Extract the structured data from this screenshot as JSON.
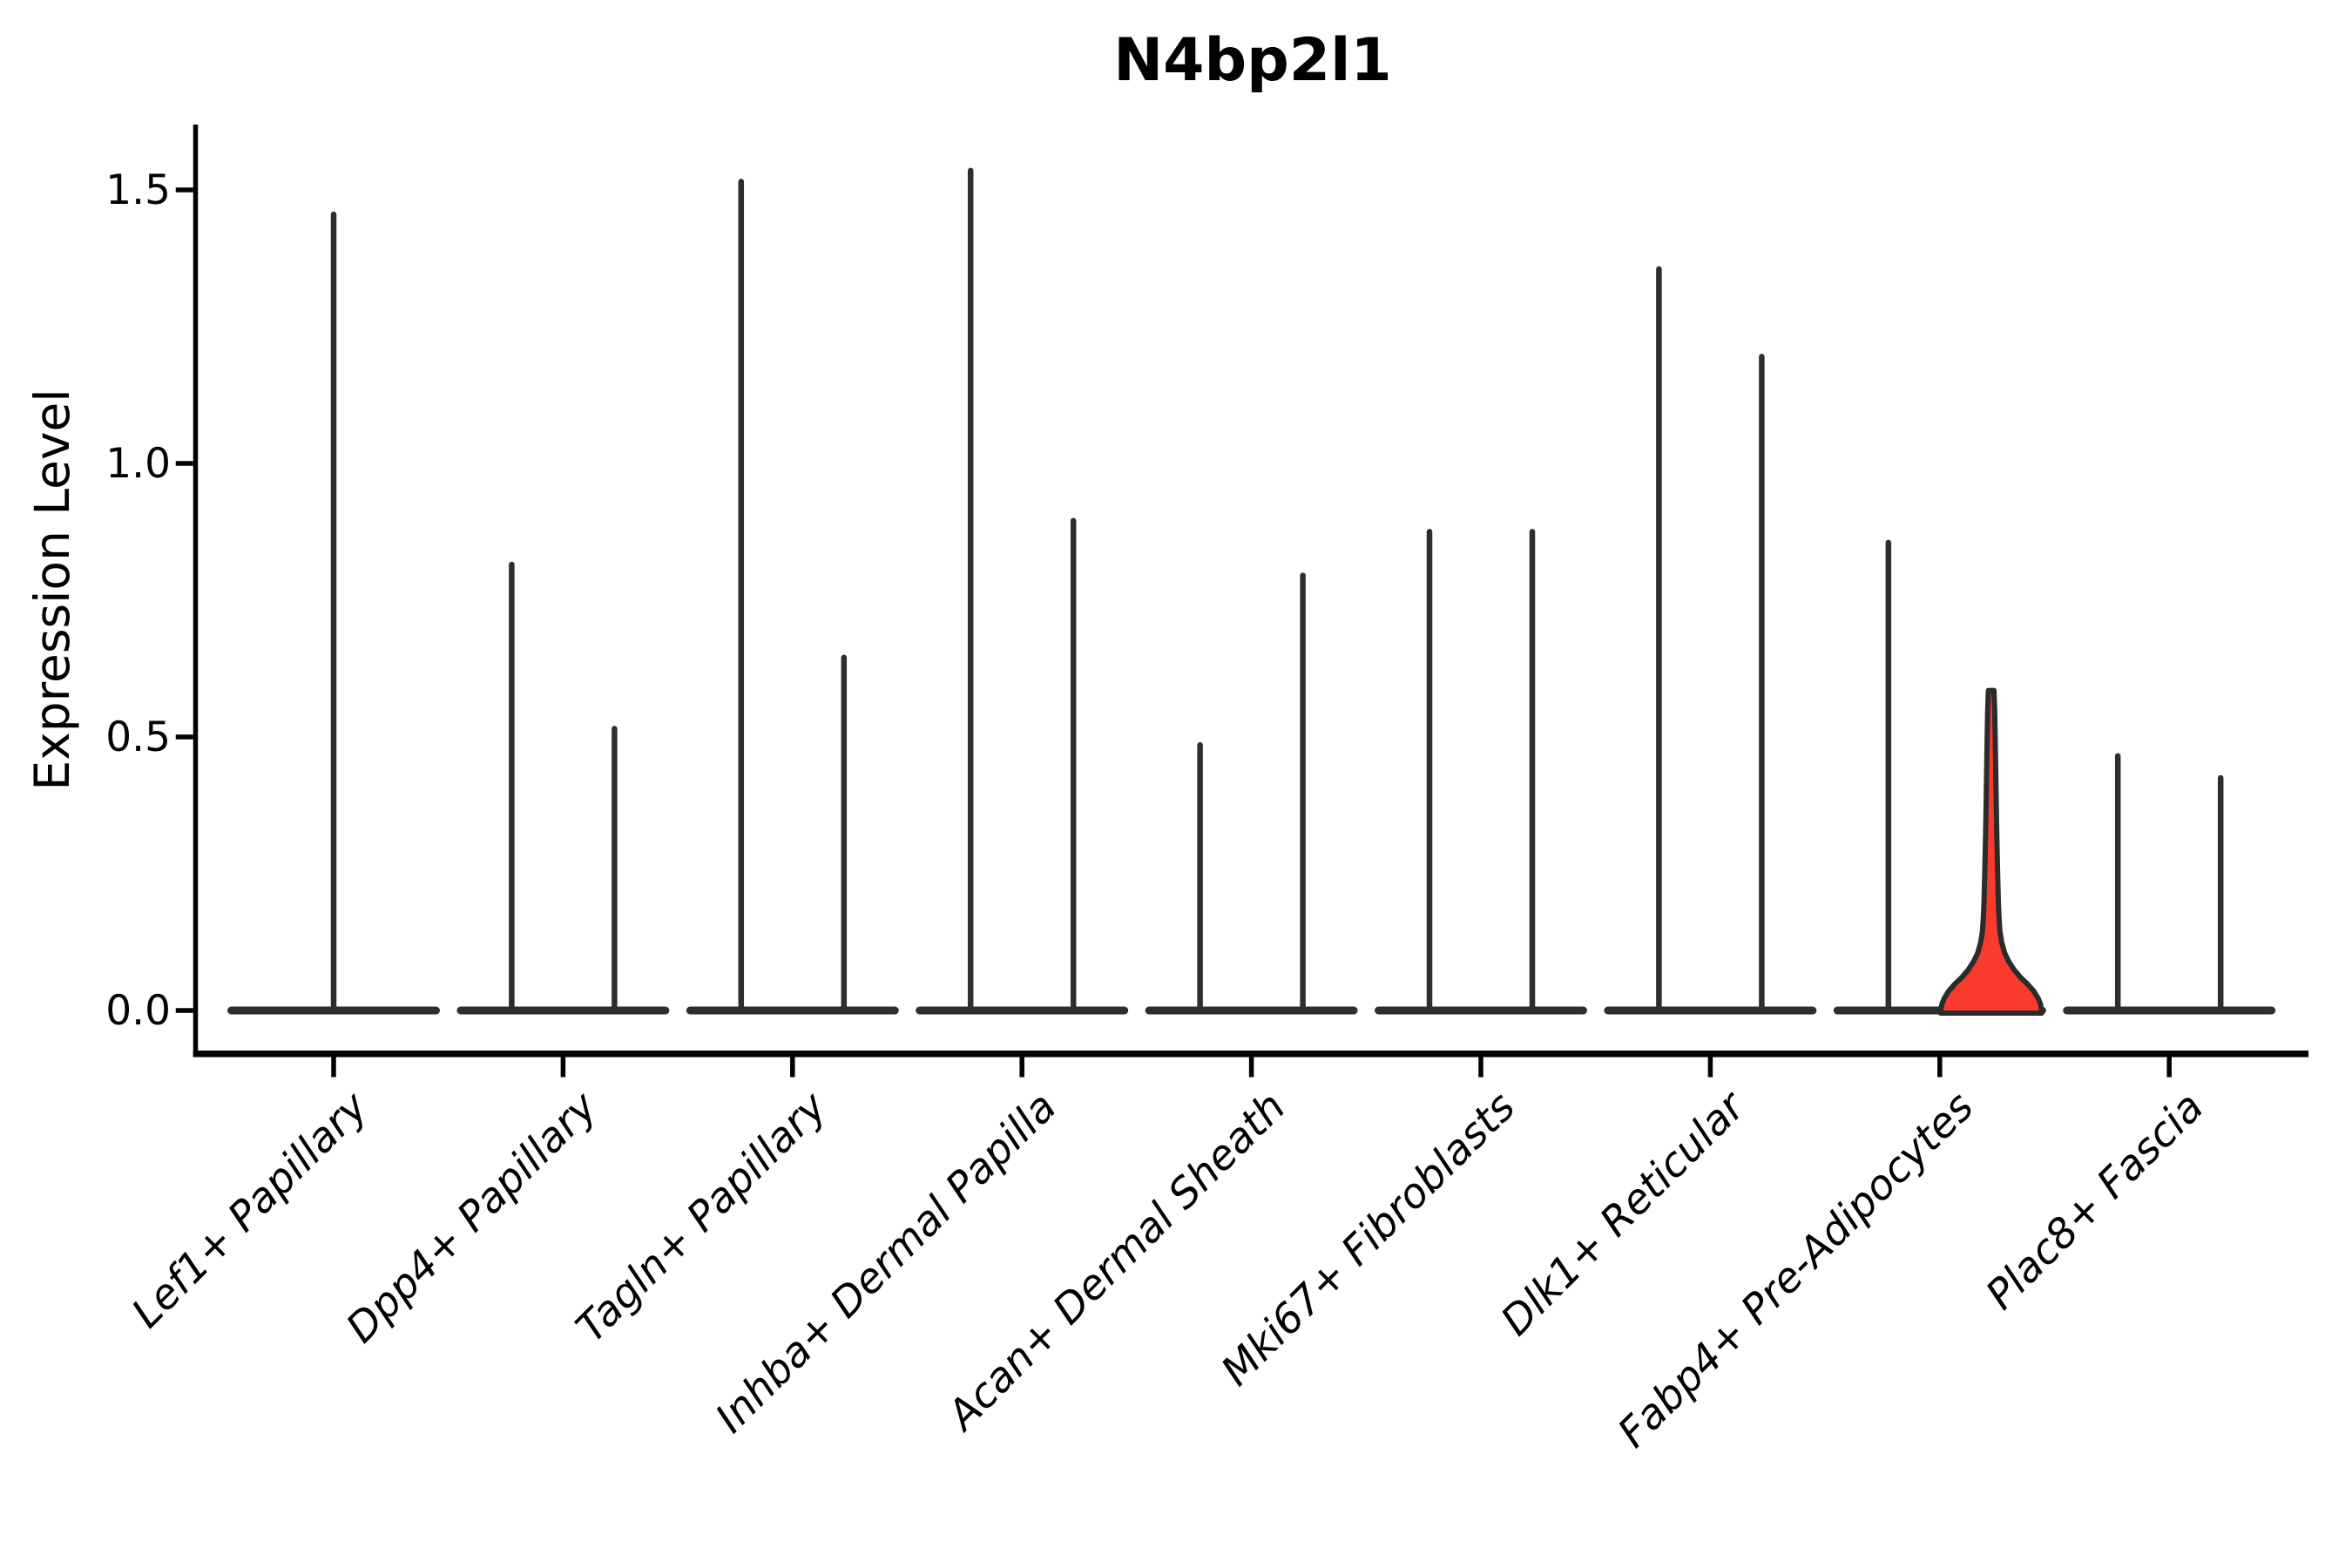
{
  "title": "N4bp2l1",
  "y_axis": {
    "label": "Expression Level",
    "tick_labels": [
      "0.0",
      "0.5",
      "1.0",
      "1.5"
    ],
    "tick_values": [
      0.0,
      0.5,
      1.0,
      1.5
    ]
  },
  "categories": [
    "Lef1+ Papillary",
    "Dpp4+ Papillary",
    "Tagln+ Papillary",
    "Inhba+ Dermal Papilla",
    "Acan+ Dermal Sheath",
    "Mki67+ Fibroblasts",
    "Dlk1+ Reticular",
    "Fabp4+ Pre-Adipocytes",
    "Plac8+ Fascia"
  ],
  "colors": {
    "highlight_fill": "#f93b2e",
    "violin_stroke": "#2e2e2e",
    "highlight_stroke": "#2b2b2b",
    "axis": "#000000",
    "text": "#000000",
    "background": "#ffffff"
  },
  "chart_data": {
    "type": "violin",
    "title": "N4bp2l1",
    "xlabel": "",
    "ylabel": "Expression Level",
    "ylim": [
      -0.08,
      1.62
    ],
    "yticks": [
      0.0,
      0.5,
      1.0,
      1.5
    ],
    "grid": false,
    "legend": false,
    "categories": [
      "Lef1+ Papillary",
      "Dpp4+ Papillary",
      "Tagln+ Papillary",
      "Inhba+ Dermal Papilla",
      "Acan+ Dermal Sheath",
      "Mki67+ Fibroblasts",
      "Dlk1+ Reticular",
      "Fabp4+ Pre-Adipocytes",
      "Plac8+ Fascia"
    ],
    "violins": [
      {
        "category": "Lef1+ Papillary",
        "slot": "center",
        "peak_expression": 1.46,
        "highlighted": false
      },
      {
        "category": "Dpp4+ Papillary",
        "slot": "left",
        "peak_expression": 0.82,
        "highlighted": false
      },
      {
        "category": "Dpp4+ Papillary",
        "slot": "right",
        "peak_expression": 0.52,
        "highlighted": false
      },
      {
        "category": "Tagln+ Papillary",
        "slot": "left",
        "peak_expression": 1.52,
        "highlighted": false
      },
      {
        "category": "Tagln+ Papillary",
        "slot": "right",
        "peak_expression": 0.65,
        "highlighted": false
      },
      {
        "category": "Inhba+ Dermal Papilla",
        "slot": "left",
        "peak_expression": 1.54,
        "highlighted": false
      },
      {
        "category": "Inhba+ Dermal Papilla",
        "slot": "right",
        "peak_expression": 0.9,
        "highlighted": false
      },
      {
        "category": "Acan+ Dermal Sheath",
        "slot": "left",
        "peak_expression": 0.49,
        "highlighted": false
      },
      {
        "category": "Acan+ Dermal Sheath",
        "slot": "right",
        "peak_expression": 0.8,
        "highlighted": false
      },
      {
        "category": "Mki67+ Fibroblasts",
        "slot": "left",
        "peak_expression": 0.88,
        "highlighted": false
      },
      {
        "category": "Mki67+ Fibroblasts",
        "slot": "right",
        "peak_expression": 0.88,
        "highlighted": false
      },
      {
        "category": "Dlk1+ Reticular",
        "slot": "left",
        "peak_expression": 1.36,
        "highlighted": false
      },
      {
        "category": "Dlk1+ Reticular",
        "slot": "right",
        "peak_expression": 1.2,
        "highlighted": false
      },
      {
        "category": "Fabp4+ Pre-Adipocytes",
        "slot": "left",
        "peak_expression": 0.86,
        "highlighted": false
      },
      {
        "category": "Fabp4+ Pre-Adipocytes",
        "slot": "right",
        "peak_expression": 0.59,
        "highlighted": true
      },
      {
        "category": "Plac8+ Fascia",
        "slot": "left",
        "peak_expression": 0.47,
        "highlighted": false
      },
      {
        "category": "Plac8+ Fascia",
        "slot": "right",
        "peak_expression": 0.43,
        "highlighted": false
      }
    ],
    "highlighted_violin_profile": [
      [
        0.585,
        3.2
      ],
      [
        0.55,
        4.0
      ],
      [
        0.5,
        4.6
      ],
      [
        0.45,
        5.1
      ],
      [
        0.4,
        5.6
      ],
      [
        0.35,
        6.1
      ],
      [
        0.3,
        6.7
      ],
      [
        0.25,
        7.4
      ],
      [
        0.2,
        8.2
      ],
      [
        0.17,
        9.0
      ],
      [
        0.145,
        10.0
      ],
      [
        0.125,
        12.0
      ],
      [
        0.105,
        15.5
      ],
      [
        0.09,
        20.0
      ],
      [
        0.075,
        26.0
      ],
      [
        0.06,
        34.0
      ],
      [
        0.048,
        42.0
      ],
      [
        0.035,
        49.0
      ],
      [
        0.022,
        54.0
      ],
      [
        0.012,
        56.5
      ],
      [
        0.0,
        58.0
      ]
    ]
  }
}
